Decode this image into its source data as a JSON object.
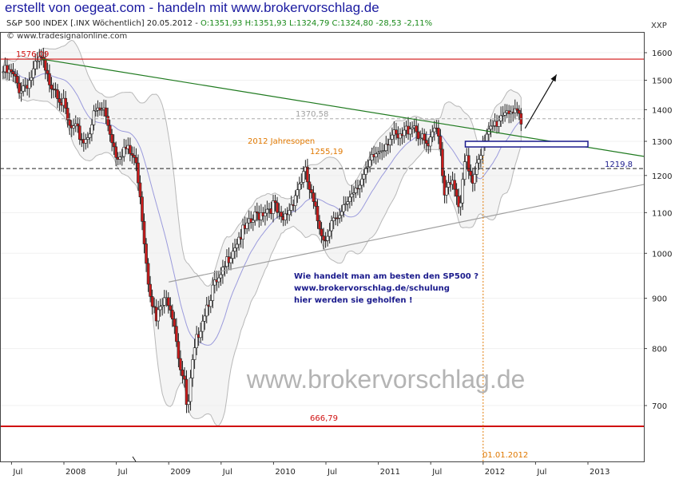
{
  "banner": "erstellt von oegeat.com - handeln mit www.brokervorschlag.de",
  "header": {
    "title_prefix": "S&P 500 INDEX [.INX Wöchentlich] 20.05.2012 - ",
    "ohlc": "O:1351,93 H:1351,93 L:1324,79 C:1324,80 -28,53 -2,11%",
    "source": "© www.tradesignalonline.com",
    "currency": "XXP"
  },
  "watermark": "www.brokervorschlag.de",
  "promo": [
    "Wie handelt man am besten den SP500 ?",
    "www.brokervorschlag.de/schulung",
    "hier werden sie geholfen !"
  ],
  "annotations": {
    "level_high": "1576,09",
    "level_1370": "1370,58",
    "jahresopen_label": "2012 Jahresopen",
    "jahresopen_value": "1255,19",
    "level_1219": "1219,8",
    "level_low": "666,79",
    "date_label": "01.01.2012"
  },
  "colors": {
    "banner": "#1a1aa0",
    "candle_up": "#ffffff",
    "candle_down": "#cc1a1a",
    "level_red": "#d01010",
    "trend_green": "#1f7a1f",
    "trend_gray": "#a0a0a0",
    "bollinger": "#b8b8b8",
    "ma": "#9b9bdc",
    "annotation_orange": "#e07800",
    "promo": "#1a1a8c"
  },
  "chart_data": {
    "type": "candlestick",
    "scale": "log",
    "ylim": [
      645,
      1700
    ],
    "y_ticks": [
      700,
      800,
      900,
      1000,
      1100,
      1200,
      1300,
      1400,
      1500,
      1600
    ],
    "x_ticks": [
      "Jul",
      "2008",
      "Jul",
      "2009",
      "Jul",
      "2010",
      "Jul",
      "2011",
      "Jul",
      "2012",
      "Jul",
      "2013"
    ],
    "series_close": [
      [
        2007.42,
        1530
      ],
      [
        2007.5,
        1520
      ],
      [
        2007.58,
        1470
      ],
      [
        2007.67,
        1500
      ],
      [
        2007.75,
        1560
      ],
      [
        2007.79,
        1576
      ],
      [
        2007.83,
        1510
      ],
      [
        2007.92,
        1480
      ],
      [
        2008.0,
        1410
      ],
      [
        2008.05,
        1340
      ],
      [
        2008.12,
        1330
      ],
      [
        2008.2,
        1300
      ],
      [
        2008.3,
        1390
      ],
      [
        2008.38,
        1400
      ],
      [
        2008.45,
        1320
      ],
      [
        2008.5,
        1260
      ],
      [
        2008.58,
        1280
      ],
      [
        2008.67,
        1250
      ],
      [
        2008.72,
        1180
      ],
      [
        2008.76,
        1050
      ],
      [
        2008.8,
        950
      ],
      [
        2008.84,
        900
      ],
      [
        2008.88,
        850
      ],
      [
        2008.92,
        880
      ],
      [
        2009.0,
        900
      ],
      [
        2009.05,
        860
      ],
      [
        2009.1,
        780
      ],
      [
        2009.15,
        735
      ],
      [
        2009.18,
        683
      ],
      [
        2009.22,
        760
      ],
      [
        2009.28,
        830
      ],
      [
        2009.35,
        880
      ],
      [
        2009.42,
        920
      ],
      [
        2009.5,
        940
      ],
      [
        2009.58,
        1000
      ],
      [
        2009.67,
        1040
      ],
      [
        2009.75,
        1060
      ],
      [
        2009.83,
        1090
      ],
      [
        2009.92,
        1110
      ],
      [
        2010.0,
        1120
      ],
      [
        2010.08,
        1070
      ],
      [
        2010.15,
        1110
      ],
      [
        2010.25,
        1180
      ],
      [
        2010.3,
        1210
      ],
      [
        2010.36,
        1140
      ],
      [
        2010.42,
        1080
      ],
      [
        2010.5,
        1030
      ],
      [
        2010.55,
        1090
      ],
      [
        2010.62,
        1070
      ],
      [
        2010.7,
        1130
      ],
      [
        2010.8,
        1180
      ],
      [
        2010.88,
        1200
      ],
      [
        2010.95,
        1250
      ],
      [
        2011.05,
        1290
      ],
      [
        2011.12,
        1320
      ],
      [
        2011.2,
        1300
      ],
      [
        2011.28,
        1340
      ],
      [
        2011.33,
        1360
      ],
      [
        2011.42,
        1300
      ],
      [
        2011.48,
        1280
      ],
      [
        2011.55,
        1340
      ],
      [
        2011.6,
        1290
      ],
      [
        2011.62,
        1150
      ],
      [
        2011.68,
        1200
      ],
      [
        2011.75,
        1130
      ],
      [
        2011.78,
        1100
      ],
      [
        2011.83,
        1250
      ],
      [
        2011.9,
        1190
      ],
      [
        2011.95,
        1260
      ],
      [
        2012.0,
        1280
      ],
      [
        2012.08,
        1340
      ],
      [
        2012.15,
        1370
      ],
      [
        2012.2,
        1400
      ],
      [
        2012.26,
        1405
      ],
      [
        2012.3,
        1380
      ],
      [
        2012.34,
        1370
      ],
      [
        2012.38,
        1325
      ]
    ],
    "levels": [
      1576.09,
      1370.58,
      1255.19,
      1219.8,
      666.79
    ],
    "forecast_arrow": [
      [
        2012.4,
        1340
      ],
      [
        2012.7,
        1520
      ]
    ]
  }
}
